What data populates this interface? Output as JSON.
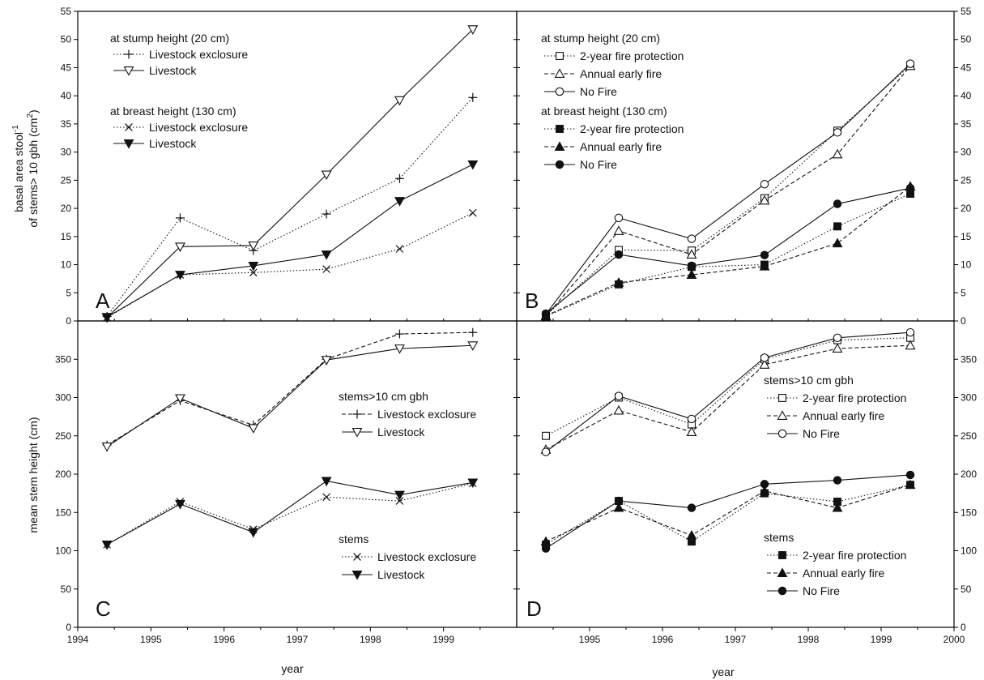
{
  "figure": {
    "y_label_top_line1": "basal area stool",
    "y_label_top_sup": "-1",
    "y_label_top_line2": "of stems> 10 gbh (cm",
    "y_label_top_sup2": "2",
    "y_label_top_end": ")",
    "y_label_bottom": "mean stem height (cm)",
    "x_label_left": "year",
    "x_label_right": "year",
    "colors": {
      "line": "#111111",
      "frame": "#000000",
      "background": "#ffffff"
    }
  },
  "chart_data": [
    {
      "panel": "A",
      "type": "line",
      "xlim": [
        1994,
        2000
      ],
      "ylim": [
        0,
        55
      ],
      "x_ticks": [
        "1994",
        "1995",
        "1996",
        "1997",
        "1998",
        "1999"
      ],
      "y_ticks": [
        "0",
        "5",
        "10",
        "15",
        "20",
        "25",
        "30",
        "35",
        "40",
        "45",
        "50",
        "55"
      ],
      "x": [
        1994.4,
        1995.4,
        1996.4,
        1997.4,
        1998.4,
        1999.4
      ],
      "groups": [
        {
          "heading": "at stump height (20 cm)"
        },
        {
          "heading": "at breast height (130 cm)"
        }
      ],
      "series": [
        {
          "group": 0,
          "name": "Livestock exclosure",
          "marker": "plus",
          "dash": "dotted",
          "values": [
            0.8,
            18.3,
            12.5,
            19.0,
            25.3,
            39.7
          ]
        },
        {
          "group": 0,
          "name": "Livestock",
          "marker": "triangle-down-open",
          "dash": "solid",
          "values": [
            0.6,
            13.2,
            13.4,
            26.0,
            39.2,
            51.8
          ]
        },
        {
          "group": 1,
          "name": "Livestock exclosure",
          "marker": "x",
          "dash": "dotted",
          "values": [
            0.6,
            8.2,
            8.6,
            9.2,
            12.8,
            19.2
          ]
        },
        {
          "group": 1,
          "name": "Livestock",
          "marker": "triangle-down-filled",
          "dash": "solid",
          "values": [
            0.7,
            8.2,
            9.8,
            11.8,
            21.3,
            27.8
          ]
        }
      ]
    },
    {
      "panel": "B",
      "type": "line",
      "xlim": [
        1994,
        2000
      ],
      "ylim": [
        0,
        55
      ],
      "x_ticks": [
        "1995",
        "1996",
        "1997",
        "1998",
        "1999",
        "2000"
      ],
      "y_ticks": [
        "0",
        "5",
        "10",
        "15",
        "20",
        "25",
        "30",
        "35",
        "40",
        "45",
        "50",
        "55"
      ],
      "x": [
        1994.4,
        1995.4,
        1996.4,
        1997.4,
        1998.4,
        1999.4
      ],
      "groups": [
        {
          "heading": "at stump height (20 cm)"
        },
        {
          "heading": "at breast height (130 cm)"
        }
      ],
      "series": [
        {
          "group": 0,
          "name": "2-year fire protection",
          "marker": "square-open",
          "dash": "dotted",
          "values": [
            1.0,
            12.6,
            12.5,
            21.8,
            33.8,
            45.4
          ]
        },
        {
          "group": 0,
          "name": "Annual early fire",
          "marker": "triangle-up-open",
          "dash": "dashed",
          "values": [
            0.8,
            16.0,
            11.8,
            21.4,
            29.6,
            45.3
          ]
        },
        {
          "group": 0,
          "name": "No Fire",
          "marker": "circle-open",
          "dash": "solid",
          "values": [
            1.2,
            18.3,
            14.6,
            24.3,
            33.5,
            45.7
          ]
        },
        {
          "group": 1,
          "name": "2-year fire protection",
          "marker": "square-filled",
          "dash": "dotted",
          "values": [
            0.8,
            6.5,
            9.6,
            10.0,
            16.8,
            22.6
          ]
        },
        {
          "group": 1,
          "name": "Annual early fire",
          "marker": "triangle-up-filled",
          "dash": "dashed",
          "values": [
            0.9,
            6.8,
            8.2,
            9.7,
            13.8,
            23.9
          ]
        },
        {
          "group": 1,
          "name": "No Fire",
          "marker": "circle-filled",
          "dash": "solid",
          "values": [
            1.3,
            11.8,
            9.8,
            11.7,
            20.8,
            23.6
          ]
        }
      ]
    },
    {
      "panel": "C",
      "type": "line",
      "xlim": [
        1994,
        2000
      ],
      "ylim": [
        0,
        400
      ],
      "x_ticks": [
        "1994",
        "1995",
        "1996",
        "1997",
        "1998",
        "1999"
      ],
      "y_ticks": [
        "0",
        "50",
        "100",
        "150",
        "200",
        "250",
        "300",
        "350"
      ],
      "x": [
        1994.4,
        1995.4,
        1996.4,
        1997.4,
        1998.4,
        1999.4
      ],
      "groups": [
        {
          "heading": "stems>10 cm gbh"
        },
        {
          "heading": "stems"
        }
      ],
      "series": [
        {
          "group": 0,
          "name": "Livestock exclosure",
          "marker": "plus",
          "dash": "dashed",
          "values": [
            238,
            296,
            264,
            350,
            383,
            385
          ]
        },
        {
          "group": 0,
          "name": "Livestock",
          "marker": "triangle-down-open",
          "dash": "solid",
          "values": [
            236,
            299,
            260,
            349,
            364,
            368
          ]
        },
        {
          "group": 1,
          "name": "Livestock exclosure",
          "marker": "x",
          "dash": "dotted",
          "values": [
            108,
            164,
            128,
            170,
            165,
            188
          ]
        },
        {
          "group": 1,
          "name": "Livestock",
          "marker": "triangle-down-filled",
          "dash": "solid",
          "values": [
            108,
            161,
            124,
            191,
            173,
            189
          ]
        }
      ]
    },
    {
      "panel": "D",
      "type": "line",
      "xlim": [
        1994,
        2000
      ],
      "ylim": [
        0,
        400
      ],
      "x_ticks": [
        "1995",
        "1996",
        "1997",
        "1998",
        "1999",
        "2000"
      ],
      "y_ticks": [
        "0",
        "50",
        "100",
        "150",
        "200",
        "250",
        "300",
        "350"
      ],
      "x": [
        1994.4,
        1995.4,
        1996.4,
        1997.4,
        1998.4,
        1999.4
      ],
      "groups": [
        {
          "heading": "stems>10 cm gbh"
        },
        {
          "heading": "stems"
        }
      ],
      "series": [
        {
          "group": 0,
          "name": "2-year fire protection",
          "marker": "square-open",
          "dash": "dotted",
          "values": [
            250,
            300,
            265,
            350,
            375,
            378
          ]
        },
        {
          "group": 0,
          "name": "Annual early fire",
          "marker": "triangle-up-open",
          "dash": "dashed",
          "values": [
            232,
            283,
            255,
            343,
            364,
            368
          ]
        },
        {
          "group": 0,
          "name": "No Fire",
          "marker": "circle-open",
          "dash": "solid",
          "values": [
            229,
            302,
            272,
            352,
            378,
            385
          ]
        },
        {
          "group": 1,
          "name": "2-year fire protection",
          "marker": "square-filled",
          "dash": "dotted",
          "values": [
            108,
            165,
            112,
            175,
            164,
            186
          ]
        },
        {
          "group": 1,
          "name": "Annual early fire",
          "marker": "triangle-up-filled",
          "dash": "dashed",
          "values": [
            112,
            156,
            120,
            178,
            156,
            186
          ]
        },
        {
          "group": 1,
          "name": "No Fire",
          "marker": "circle-filled",
          "dash": "solid",
          "values": [
            103,
            165,
            156,
            187,
            192,
            199
          ]
        }
      ]
    }
  ]
}
